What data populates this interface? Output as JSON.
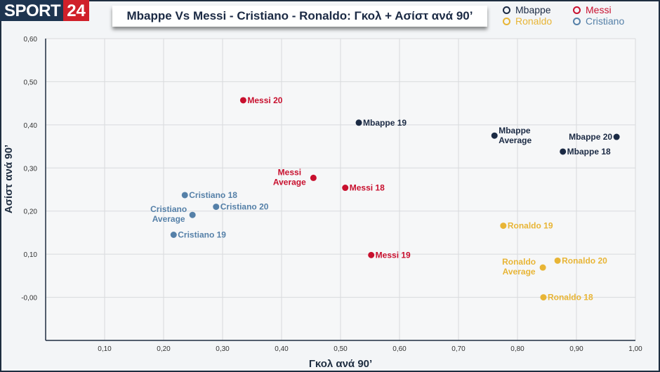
{
  "logo": {
    "part1": "SPORT",
    "part2": "24"
  },
  "title": "Mbappe Vs Messi - Cristiano - Ronaldo: Γκολ + Ασίστ ανά 90’",
  "legend": [
    {
      "name": "Mbappe",
      "color": "#1b2a44"
    },
    {
      "name": "Messi",
      "color": "#c8102e"
    },
    {
      "name": "Ronaldo",
      "color": "#e8b536"
    },
    {
      "name": "Cristiano",
      "color": "#5580a8"
    }
  ],
  "chart_data": {
    "type": "scatter",
    "title": "Mbappe Vs Messi - Cristiano - Ronaldo: Γκολ + Ασίστ ανά 90’",
    "xlabel": "Γκολ ανά 90’",
    "ylabel": "Ασίστ ανά 90’",
    "xlim": [
      0,
      1.0
    ],
    "ylim": [
      -0.1,
      0.6
    ],
    "xticks": [
      "0,10",
      "0,20",
      "0,30",
      "0,40",
      "0,50",
      "0,60",
      "0,70",
      "0,80",
      "0,90",
      "1,00"
    ],
    "xtick_values": [
      0.1,
      0.2,
      0.3,
      0.4,
      0.5,
      0.6,
      0.7,
      0.8,
      0.9,
      1.0
    ],
    "yticks": [
      "-0,00",
      "0,10",
      "0,20",
      "0,30",
      "0,40",
      "0,50",
      "0,60"
    ],
    "ytick_values": [
      0,
      0.1,
      0.2,
      0.3,
      0.4,
      0.5,
      0.6
    ],
    "grid": true,
    "points": [
      {
        "label": "Messi 20",
        "series": "Messi",
        "x": 0.335,
        "y": 0.457,
        "pos": "right"
      },
      {
        "label": "Mbappe 19",
        "series": "Mbappe",
        "x": 0.531,
        "y": 0.405,
        "pos": "right"
      },
      {
        "label": "Mbappe Average",
        "series": "Mbappe",
        "x": 0.761,
        "y": 0.375,
        "pos": "right2"
      },
      {
        "label": "Mbappe 20",
        "series": "Mbappe",
        "x": 0.968,
        "y": 0.372,
        "pos": "left"
      },
      {
        "label": "Mbappe 18",
        "series": "Mbappe",
        "x": 0.877,
        "y": 0.338,
        "pos": "right"
      },
      {
        "label": "Messi Average",
        "series": "Messi",
        "x": 0.454,
        "y": 0.277,
        "pos": "left2"
      },
      {
        "label": "Messi 18",
        "series": "Messi",
        "x": 0.508,
        "y": 0.254,
        "pos": "right"
      },
      {
        "label": "Messi 19",
        "series": "Messi",
        "x": 0.552,
        "y": 0.098,
        "pos": "right"
      },
      {
        "label": "Cristiano 18",
        "series": "Cristiano",
        "x": 0.236,
        "y": 0.237,
        "pos": "right"
      },
      {
        "label": "Cristiano Average",
        "series": "Cristiano",
        "x": 0.249,
        "y": 0.191,
        "pos": "left2"
      },
      {
        "label": "Cristiano 20",
        "series": "Cristiano",
        "x": 0.289,
        "y": 0.21,
        "pos": "right"
      },
      {
        "label": "Cristiano 19",
        "series": "Cristiano",
        "x": 0.217,
        "y": 0.145,
        "pos": "right"
      },
      {
        "label": "Ronaldo 19",
        "series": "Ronaldo",
        "x": 0.776,
        "y": 0.166,
        "pos": "right"
      },
      {
        "label": "Ronaldo Average",
        "series": "Ronaldo",
        "x": 0.843,
        "y": 0.069,
        "pos": "left2"
      },
      {
        "label": "Ronaldo 20",
        "series": "Ronaldo",
        "x": 0.868,
        "y": 0.085,
        "pos": "right"
      },
      {
        "label": "Ronaldo 18",
        "series": "Ronaldo",
        "x": 0.844,
        "y": 0.0,
        "pos": "right"
      }
    ]
  }
}
